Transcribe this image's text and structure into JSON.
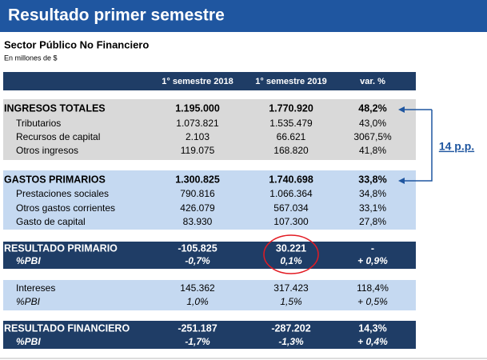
{
  "header": {
    "title": "Resultado primer semestre"
  },
  "subtitle": "Sector Público No Financiero",
  "units": "En millones de $",
  "table": {
    "columns": [
      "1° semestre 2018",
      "1° semestre 2019",
      "var. %"
    ],
    "sections": [
      {
        "rows": [
          [
            "INGRESOS TOTALES",
            "1.195.000",
            "1.770.920",
            "48,2%"
          ],
          [
            "Tributarios",
            "1.073.821",
            "1.535.479",
            "43,0%"
          ],
          [
            "Recursos de capital",
            "2.103",
            "66.621",
            "3067,5%"
          ],
          [
            "Otros ingresos",
            "119.075",
            "168.820",
            "41,8%"
          ]
        ]
      },
      {
        "rows": [
          [
            "GASTOS PRIMARIOS",
            "1.300.825",
            "1.740.698",
            "33,8%"
          ],
          [
            "Prestaciones sociales",
            "790.816",
            "1.066.364",
            "34,8%"
          ],
          [
            "Otros gastos corrientes",
            "426.079",
            "567.034",
            "33,1%"
          ],
          [
            "Gasto de capital",
            "83.930",
            "107.300",
            "27,8%"
          ]
        ]
      },
      {
        "rows": [
          [
            "RESULTADO PRIMARIO",
            "-105.825",
            "30.221",
            "-"
          ],
          [
            "%PBI",
            "-0,7%",
            "0,1%",
            "+ 0,9%"
          ]
        ]
      },
      {
        "rows": [
          [
            "Intereses",
            "145.362",
            "317.423",
            "118,4%"
          ],
          [
            "%PBI",
            "1,0%",
            "1,5%",
            "+ 0,5%"
          ]
        ]
      },
      {
        "rows": [
          [
            "RESULTADO FINANCIERO",
            "-251.187",
            "-287.202",
            "14,3%"
          ],
          [
            "%PBI",
            "-1,7%",
            "-1,3%",
            "+ 0,4%"
          ]
        ]
      }
    ]
  },
  "annotation": "14 p.p."
}
